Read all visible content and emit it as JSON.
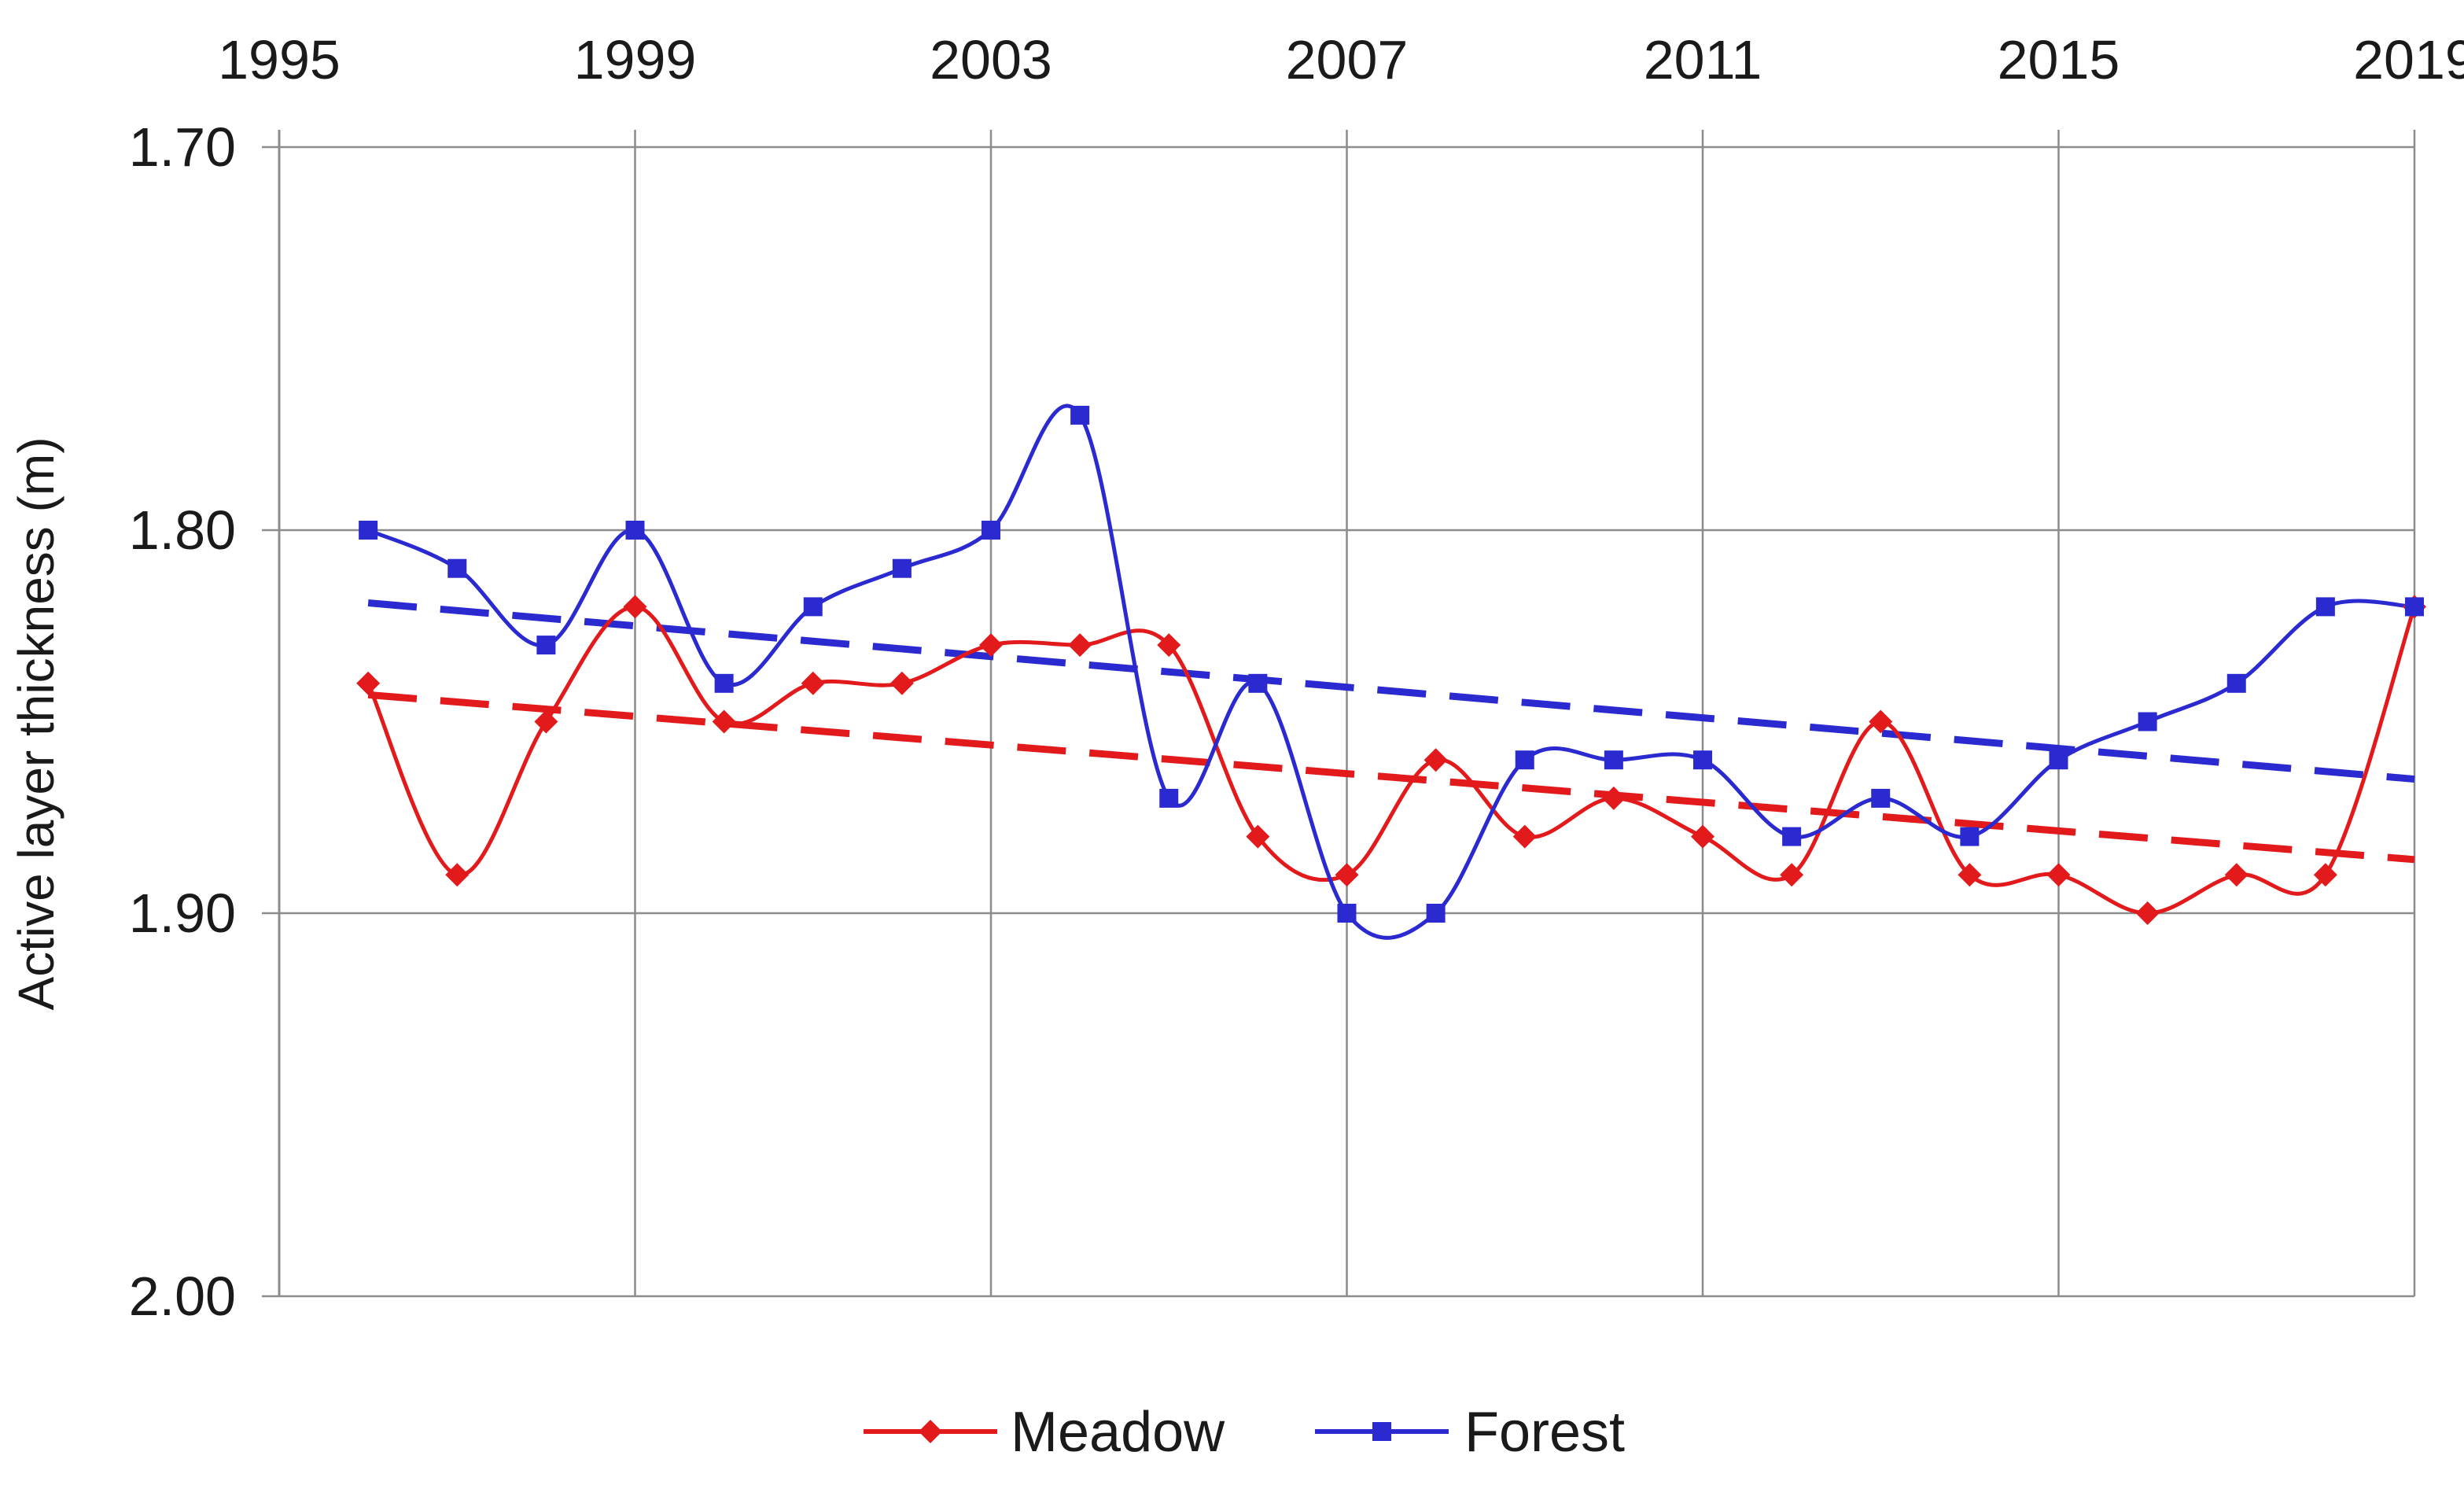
{
  "chart_data": {
    "type": "line",
    "ylabel": "Active layer thickness (m)",
    "xlabel": "",
    "x_axis_position": "top",
    "y_axis_inverted": true,
    "xlim": [
      1995,
      2019
    ],
    "ylim": [
      1.7,
      2.0
    ],
    "x_ticks": [
      "1995",
      "1999",
      "2003",
      "2007",
      "2011",
      "2015",
      "2019"
    ],
    "y_ticks": [
      "1.70",
      "1.80",
      "1.90",
      "2.00"
    ],
    "grid": true,
    "legend_position": "bottom",
    "x": [
      1996,
      1997,
      1998,
      1999,
      2000,
      2001,
      2002,
      2003,
      2004,
      2005,
      2006,
      2007,
      2008,
      2009,
      2010,
      2011,
      2012,
      2013,
      2014,
      2015,
      2016,
      2017,
      2018,
      2019
    ],
    "series": [
      {
        "name": "Meadow",
        "color": "#e31a1c",
        "marker": "diamond",
        "values": [
          1.84,
          1.89,
          1.85,
          1.82,
          1.85,
          1.84,
          1.84,
          1.83,
          1.83,
          1.83,
          1.88,
          1.89,
          1.86,
          1.88,
          1.87,
          1.88,
          1.89,
          1.85,
          1.89,
          1.89,
          1.9,
          1.89,
          1.89,
          1.82
        ],
        "trend": [
          1.843,
          1.886
        ]
      },
      {
        "name": "Forest",
        "color": "#2a2ad0",
        "marker": "square",
        "values": [
          1.8,
          1.81,
          1.83,
          1.8,
          1.84,
          1.82,
          1.81,
          1.8,
          1.77,
          1.87,
          1.84,
          1.9,
          1.9,
          1.86,
          1.86,
          1.86,
          1.88,
          1.87,
          1.88,
          1.86,
          1.85,
          1.84,
          1.82,
          1.82
        ],
        "trend": [
          1.819,
          1.865
        ]
      }
    ]
  }
}
